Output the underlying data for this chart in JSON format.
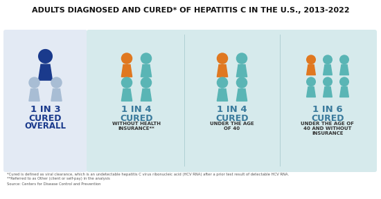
{
  "title": "ADULTS DIAGNOSED AND CURED* OF HEPATITIS C IN THE U.S., 2013-2022",
  "title_fontsize": 8.0,
  "background": "#ffffff",
  "panel_bg_left": "#e3eaf4",
  "panel_bg_right": "#d6eaec",
  "sections": [
    {
      "ratio": "1 IN 3",
      "label1": "CURED",
      "label2": "OVERALL",
      "total_figures": 3,
      "highlight_color": "#1a3a8c",
      "other_color": "#a8bdd4",
      "layout": "1top_2bottom",
      "ratio_color": "#1a3a8c",
      "cured_color": "#1a3a8c",
      "sub_color": "#1a3a8c"
    },
    {
      "ratio": "1 IN 4",
      "label1": "CURED",
      "label2": "WITHOUT HEALTH\nINSURANCE**",
      "total_figures": 4,
      "highlight_color": "#e07820",
      "other_color": "#5ab5b5",
      "layout": "2top_2bottom",
      "ratio_color": "#3a7a9c",
      "cured_color": "#3a7a9c",
      "sub_color": "#333333"
    },
    {
      "ratio": "1 IN 4",
      "label1": "CURED",
      "label2": "UNDER THE AGE\nOF 40",
      "total_figures": 4,
      "highlight_color": "#e07820",
      "other_color": "#5ab5b5",
      "layout": "2top_2bottom",
      "ratio_color": "#3a7a9c",
      "cured_color": "#3a7a9c",
      "sub_color": "#333333"
    },
    {
      "ratio": "1 IN 6",
      "label1": "CURED",
      "label2": "UNDER THE AGE OF\n40 AND WITHOUT\nINSURANCE",
      "total_figures": 6,
      "highlight_color": "#e07820",
      "other_color": "#5ab5b5",
      "layout": "3top_3bottom",
      "ratio_color": "#3a7a9c",
      "cured_color": "#3a7a9c",
      "sub_color": "#333333"
    }
  ],
  "footnote1": "*Cured is defined as viral clearance, which is an undetectable hepatitis C virus ribonucleic acid (HCV RNA) after a prior test result of detectable HCV RNA.",
  "footnote2": "**Referred to as Other (client or self-pay) in the analysis",
  "source": "Source: Centers for Disease Control and Prevention"
}
